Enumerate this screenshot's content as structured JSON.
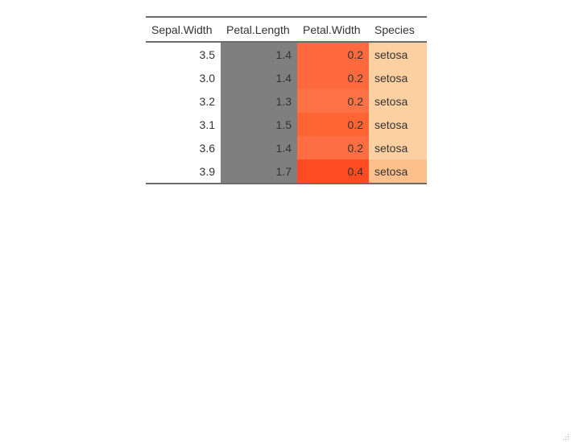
{
  "table": {
    "columns": [
      "Sepal.Width",
      "Petal.Length",
      "Petal.Width",
      "Species"
    ],
    "rows": [
      {
        "sepal_width": "3.5",
        "petal_length": "1.4",
        "petal_width": "0.2",
        "species": "setosa"
      },
      {
        "sepal_width": "3.0",
        "petal_length": "1.4",
        "petal_width": "0.2",
        "species": "setosa"
      },
      {
        "sepal_width": "3.2",
        "petal_length": "1.3",
        "petal_width": "0.2",
        "species": "setosa"
      },
      {
        "sepal_width": "3.1",
        "petal_length": "1.5",
        "petal_width": "0.2",
        "species": "setosa"
      },
      {
        "sepal_width": "3.6",
        "petal_length": "1.4",
        "petal_width": "0.2",
        "species": "setosa"
      },
      {
        "sepal_width": "3.9",
        "petal_length": "1.7",
        "petal_width": "0.4",
        "species": "setosa"
      }
    ],
    "cell_colors": {
      "petal_length": [
        "#7f7f7f",
        "#7f7f7f",
        "#7f7f7f",
        "#7f7f7f",
        "#7f7f7f",
        "#7f7f7f"
      ],
      "petal_width": [
        "#fe6a3d",
        "#fe6a3d",
        "#fe7246",
        "#fe6434",
        "#fe6e42",
        "#fe4b22"
      ],
      "species": [
        "#fdd0a2",
        "#fdd0a2",
        "#fdd0a2",
        "#fdd0a2",
        "#fdd0a2",
        "#fdbf8b"
      ]
    }
  }
}
